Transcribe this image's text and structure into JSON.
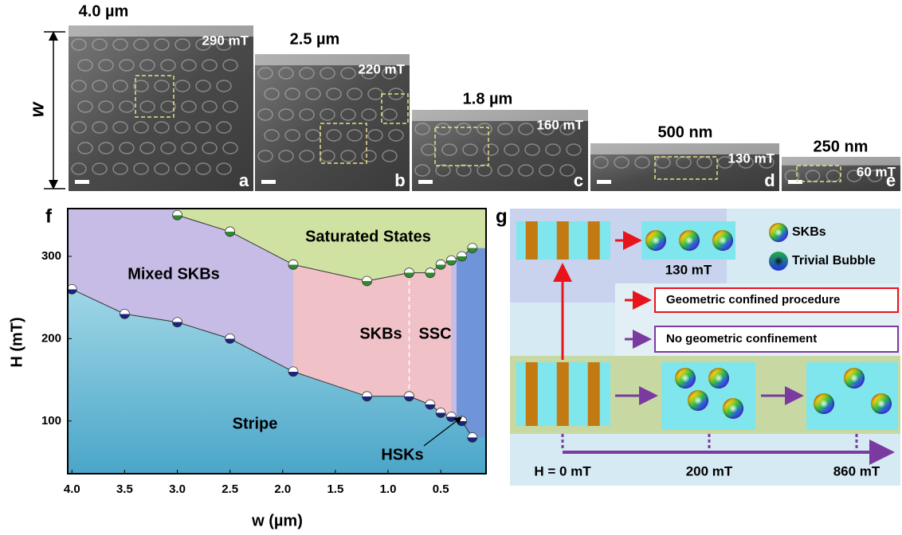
{
  "w_label": "w",
  "panels": [
    {
      "label": "a",
      "size": "4.0 µm",
      "field": "290 mT"
    },
    {
      "label": "b",
      "size": "2.5 µm",
      "field": "220 mT"
    },
    {
      "label": "c",
      "size": "1.8 µm",
      "field": "160 mT"
    },
    {
      "label": "d",
      "size": "500 nm",
      "field": "130 mT"
    },
    {
      "label": "e",
      "size": "250 nm",
      "field": "60 mT"
    }
  ],
  "chart_data": {
    "type": "line",
    "label": "f",
    "xlabel": "w (µm)",
    "ylabel": "H (mT)",
    "xlim": [
      4.04,
      0.07
    ],
    "ylim": [
      36,
      358
    ],
    "xticks": [
      {
        "value": 4,
        "label": "4.0"
      },
      3.5,
      {
        "value": 3,
        "label": "3.0"
      },
      2.5,
      {
        "value": 2,
        "label": "2.0"
      },
      1.5,
      {
        "value": 1,
        "label": "1.0"
      },
      0.5
    ],
    "yticks": [
      100,
      200,
      300
    ],
    "series": [
      {
        "color": "#2e8b2e",
        "x": [
          3.0,
          2.5,
          1.9,
          1.2,
          0.8,
          0.6,
          0.5,
          0.4,
          0.3,
          0.2
        ],
        "values": [
          350,
          330,
          290,
          270,
          280,
          280,
          290,
          295,
          300,
          310
        ]
      },
      {
        "color": "#1a237e",
        "x": [
          4.0,
          3.5,
          3.0,
          2.5,
          1.9,
          1.2,
          0.8,
          0.6,
          0.5,
          0.4,
          0.3,
          0.2
        ],
        "values": [
          260,
          230,
          220,
          200,
          160,
          130,
          130,
          120,
          110,
          105,
          100,
          80
        ]
      }
    ],
    "regions": [
      "Saturated States",
      "Mixed SKBs",
      "SKBs",
      "SSC",
      "Stripe",
      "HSKs"
    ]
  },
  "diagram": {
    "label": "g",
    "top_field": "130 mT",
    "legend": [
      "SKBs",
      "Trivial  Bubble"
    ],
    "arrows": [
      "Geometric confined procedure",
      "No geometric confinement"
    ],
    "fields": [
      "H = 0 mT",
      "200 mT",
      "860 mT"
    ]
  }
}
